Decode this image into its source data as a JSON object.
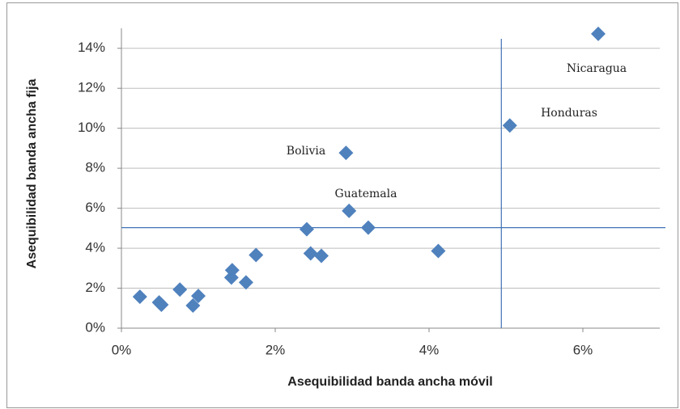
{
  "chart_data": {
    "type": "scatter",
    "xlabel": "Asequibilidad banda ancha móvil",
    "ylabel": "Asequibilidad banda ancha fija",
    "x": [
      0.24,
      0.49,
      0.52,
      0.76,
      0.93,
      1.0,
      1.44,
      1.43,
      1.62,
      1.75,
      2.41,
      2.46,
      2.6,
      2.92,
      2.96,
      3.21,
      4.12,
      5.05,
      6.2
    ],
    "values": [
      1.57,
      1.29,
      1.17,
      1.93,
      1.13,
      1.61,
      2.9,
      2.53,
      2.29,
      3.66,
      4.95,
      3.74,
      3.62,
      8.77,
      5.87,
      5.03,
      3.86,
      10.14,
      14.72
    ],
    "color": "#4f81bd",
    "xlim": [
      0,
      7
    ],
    "xticks": [
      {
        "value": 0,
        "label": "0%"
      },
      {
        "value": 2,
        "label": "2%"
      },
      {
        "value": 4,
        "label": "4%"
      },
      {
        "value": 6,
        "label": "6%"
      }
    ],
    "ylim": [
      0,
      15
    ],
    "yticks": [
      {
        "value": 0,
        "label": "0%"
      },
      {
        "value": 2,
        "label": "2%"
      },
      {
        "value": 4,
        "label": "4%"
      },
      {
        "value": 6,
        "label": "6%"
      },
      {
        "value": 8,
        "label": "8%"
      },
      {
        "value": 10,
        "label": "10%"
      },
      {
        "value": 12,
        "label": "12%"
      },
      {
        "value": 14,
        "label": "14%"
      }
    ],
    "grid": true,
    "reference_lines": {
      "x": 4.94,
      "y": 5.03,
      "color": "#3f72b5"
    },
    "annotations": [
      "Nicaragua",
      "Honduras",
      "Bolivia",
      "Guatemala"
    ]
  }
}
